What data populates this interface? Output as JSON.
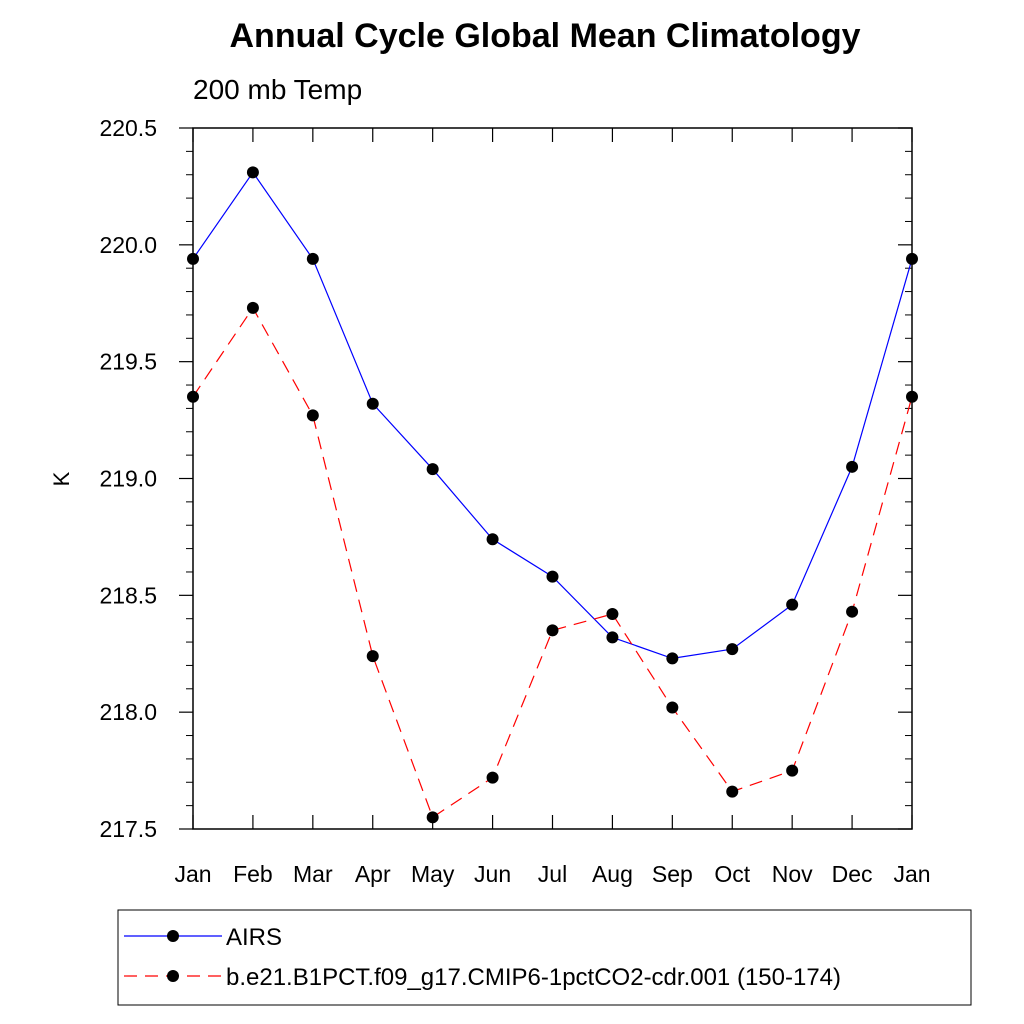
{
  "chart_data": {
    "type": "line",
    "title": "Annual Cycle Global Mean Climatology",
    "subtitle": "200 mb Temp",
    "xlabel": "",
    "ylabel": "K",
    "categories": [
      "Jan",
      "Feb",
      "Mar",
      "Apr",
      "May",
      "Jun",
      "Jul",
      "Aug",
      "Sep",
      "Oct",
      "Nov",
      "Dec",
      "Jan"
    ],
    "yticks": [
      "217.5",
      "218.0",
      "218.5",
      "219.0",
      "219.5",
      "220.0",
      "220.5"
    ],
    "ylim": [
      217.5,
      220.5
    ],
    "grid": false,
    "legend_position": "bottom",
    "series": [
      {
        "name": "AIRS",
        "color": "#0000ff",
        "dash": "solid",
        "values": [
          219.94,
          220.31,
          219.94,
          219.32,
          219.04,
          218.74,
          218.58,
          218.32,
          218.23,
          218.27,
          218.46,
          219.05,
          219.94
        ]
      },
      {
        "name": "b.e21.B1PCT.f09_g17.CMIP6-1pctCO2-cdr.001 (150-174)",
        "color": "#ff0000",
        "dash": "dashed",
        "values": [
          219.35,
          219.73,
          219.27,
          218.24,
          217.55,
          217.72,
          218.35,
          218.42,
          218.02,
          217.66,
          217.75,
          218.43,
          219.35
        ]
      }
    ]
  }
}
